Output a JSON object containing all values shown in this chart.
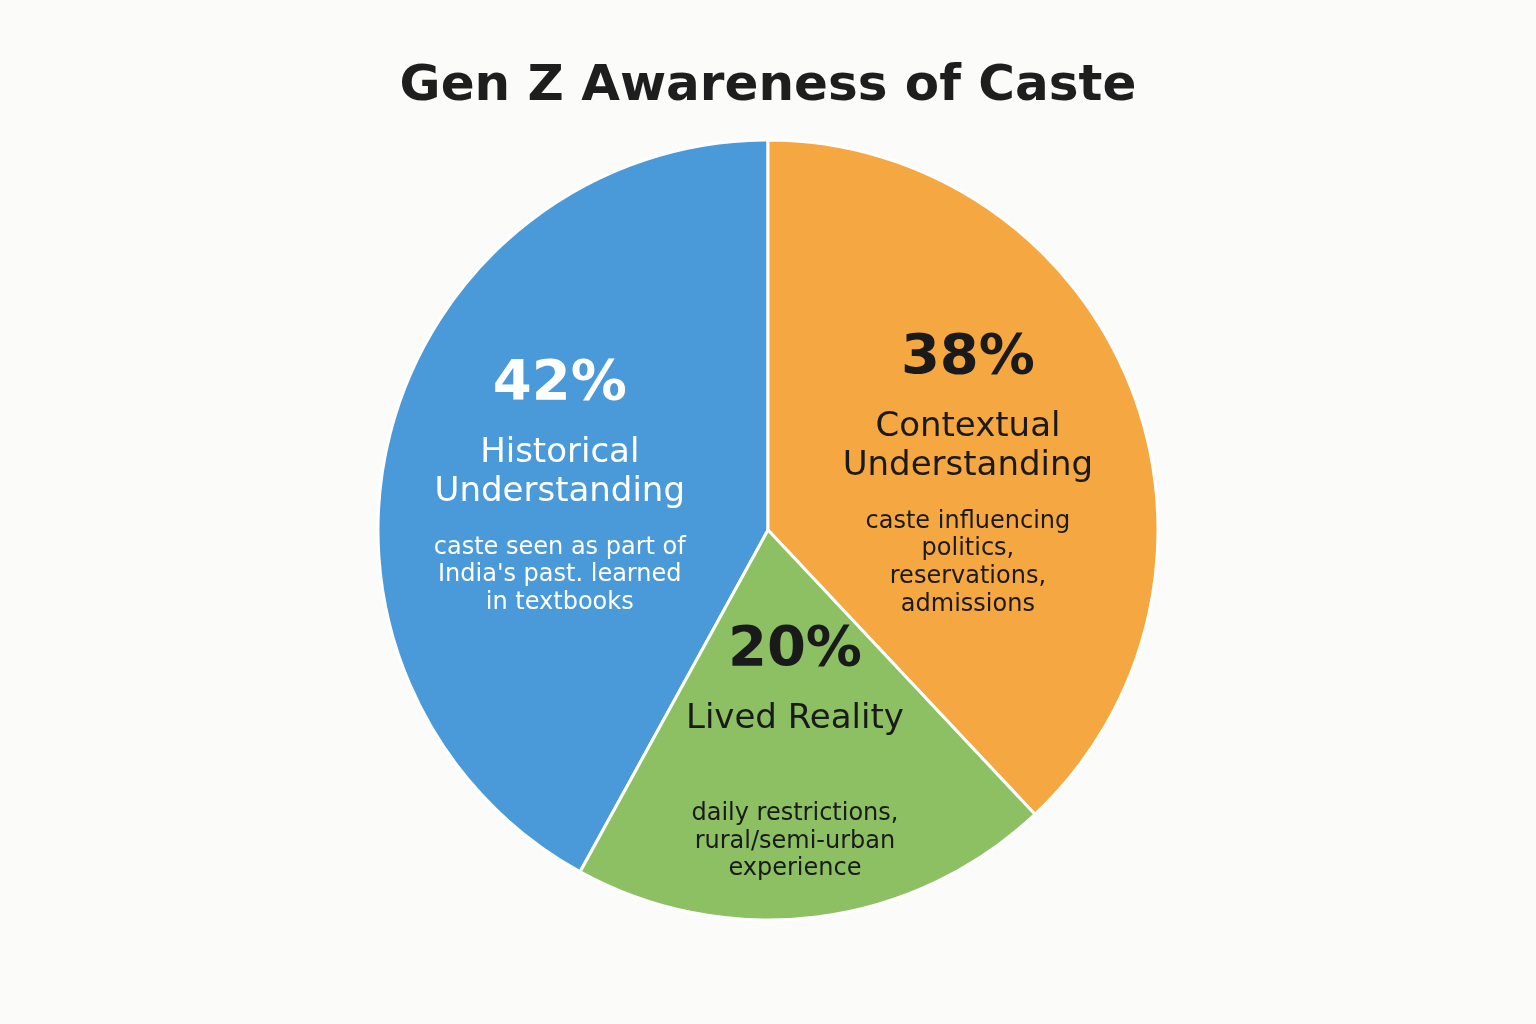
{
  "chart_data": {
    "type": "pie",
    "title": "Gen Z Awareness of Caste",
    "categories": [
      "Historical Understanding",
      "Contextual Understanding",
      "Lived Reality"
    ],
    "values": [
      42,
      38,
      20
    ],
    "colors": [
      "#4a9ad9",
      "#f5a742",
      "#8cc063"
    ],
    "value_labels": [
      "42%",
      "38%",
      "20%"
    ],
    "annotations": [
      "caste seen as part of India's past. learned in textbooks",
      "caste influencing politics, reservations, admissions",
      "daily restrictions, rural/semi-urban experience"
    ],
    "legend": false
  }
}
